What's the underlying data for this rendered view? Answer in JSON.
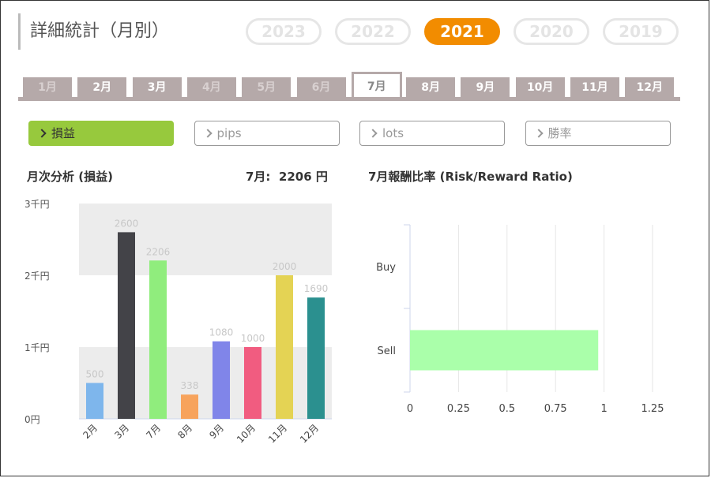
{
  "page": {
    "title": "詳細統計（月別）"
  },
  "years": [
    {
      "label": "2023",
      "active": false
    },
    {
      "label": "2022",
      "active": false
    },
    {
      "label": "2021",
      "active": true
    },
    {
      "label": "2020",
      "active": false
    },
    {
      "label": "2019",
      "active": false
    }
  ],
  "months": [
    {
      "label": "1月",
      "state": "light"
    },
    {
      "label": "2月",
      "state": "normal"
    },
    {
      "label": "3月",
      "state": "normal"
    },
    {
      "label": "4月",
      "state": "light"
    },
    {
      "label": "5月",
      "state": "light"
    },
    {
      "label": "6月",
      "state": "light"
    },
    {
      "label": "7月",
      "state": "active"
    },
    {
      "label": "8月",
      "state": "normal"
    },
    {
      "label": "9月",
      "state": "normal"
    },
    {
      "label": "10月",
      "state": "normal"
    },
    {
      "label": "11月",
      "state": "normal"
    },
    {
      "label": "12月",
      "state": "normal"
    }
  ],
  "metrics": [
    {
      "label": "損益",
      "active": true
    },
    {
      "label": "pips",
      "active": false
    },
    {
      "label": "lots",
      "active": false
    },
    {
      "label": "勝率",
      "active": false
    }
  ],
  "monthly": {
    "heading": "月次分析 (損益)",
    "summary": "7月:  2206 円"
  },
  "ratio": {
    "heading": "7月報酬比率 (Risk/Reward Ratio)"
  },
  "chart_data": [
    {
      "type": "bar",
      "title": "月次分析 (損益)",
      "categories": [
        "2月",
        "3月",
        "7月",
        "8月",
        "9月",
        "10月",
        "11月",
        "12月"
      ],
      "values": [
        500,
        2600,
        2206,
        338,
        1080,
        1000,
        2000,
        1690
      ],
      "colors": [
        "#7eb6ec",
        "#434348",
        "#90ed7d",
        "#f7a35c",
        "#8085e9",
        "#f15c80",
        "#e4d354",
        "#2b908f"
      ],
      "ylim": [
        0,
        3000
      ],
      "yticks": [
        0,
        1000,
        2000,
        3000
      ],
      "ytick_labels": [
        "0円",
        "1千円",
        "2千円",
        "3千円"
      ],
      "data_labels": true,
      "grid": "alternate bands"
    },
    {
      "type": "bar",
      "orientation": "horizontal",
      "title": "7月報酬比率 (Risk/Reward Ratio)",
      "categories": [
        "Buy",
        "Sell"
      ],
      "values": [
        0,
        0.97
      ],
      "colors": [
        "#aaffaa",
        "#aaffaa"
      ],
      "xlim": [
        0,
        1.25
      ],
      "xticks": [
        0,
        0.25,
        0.5,
        0.75,
        1,
        1.25
      ],
      "xtick_labels": [
        "0",
        "0.25",
        "0.5",
        "0.75",
        "1",
        "1.25"
      ],
      "grid": true
    }
  ]
}
